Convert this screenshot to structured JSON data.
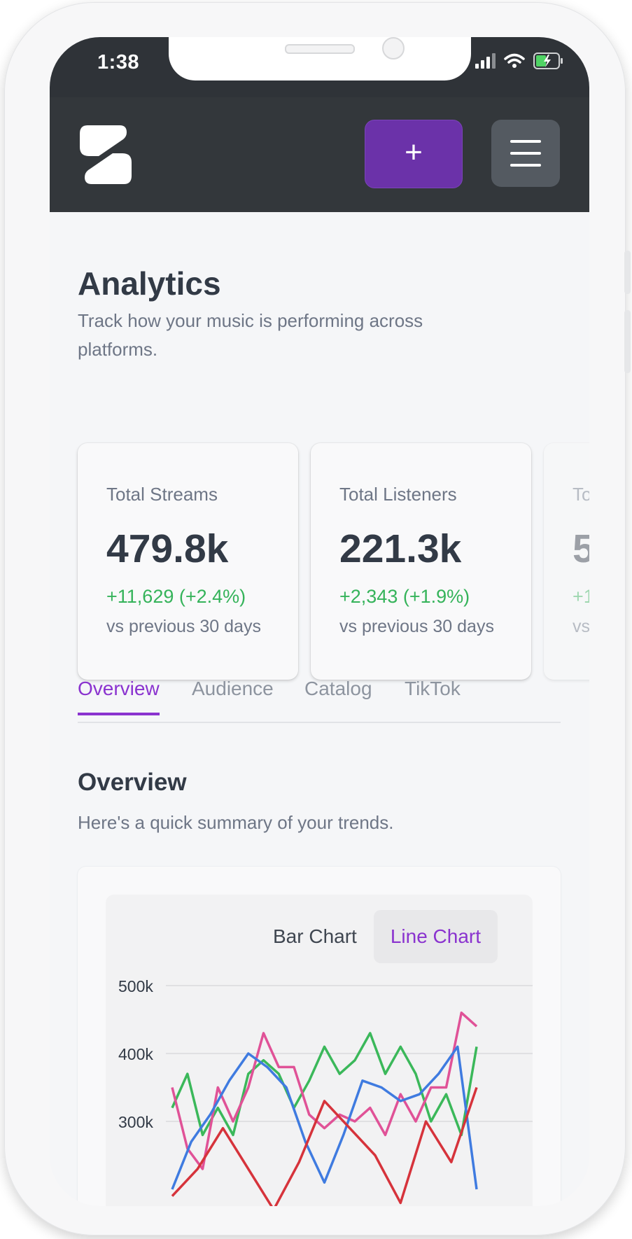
{
  "status_bar": {
    "time": "1:38"
  },
  "header": {
    "add_label": "+"
  },
  "page": {
    "title": "Analytics",
    "subtitle": "Track how your music is performing across platforms."
  },
  "stats": [
    {
      "label": "Total Streams",
      "value": "479.8k",
      "delta": "+11,629 (+2.4%)",
      "period": "vs previous 30 days"
    },
    {
      "label": "Total Listeners",
      "value": "221.3k",
      "delta": "+2,343 (+1.9%)",
      "period": "vs previous 30 days"
    },
    {
      "label": "To",
      "value": "5",
      "delta": "+1",
      "period": "vs"
    }
  ],
  "tabs": [
    "Overview",
    "Audience",
    "Catalog",
    "TikTok"
  ],
  "active_tab": "Overview",
  "overview": {
    "title": "Overview",
    "subtitle": "Here's a quick summary of your trends."
  },
  "chart_toggle": {
    "bar": "Bar Chart",
    "line": "Line Chart",
    "active": "Line Chart"
  },
  "colors": {
    "accent": "#8a33cf",
    "add_button": "#6b32a9",
    "positive": "#35b35a",
    "header": "#33373b"
  },
  "icons": [
    "signal-icon",
    "wifi-icon",
    "battery-charging-icon",
    "menu-icon",
    "plus-icon",
    "logo-icon"
  ],
  "chart_data": {
    "type": "line",
    "yticks": [
      "500k",
      "400k",
      "300k"
    ],
    "ylim": [
      200,
      500
    ],
    "grid": true,
    "series": [
      {
        "color": "#3bb85a",
        "values": [
          320,
          370,
          280,
          320,
          280,
          370,
          390,
          370,
          320,
          360,
          410,
          370,
          390,
          430,
          370,
          410,
          370,
          300,
          340,
          280,
          410
        ]
      },
      {
        "color": "#e05297",
        "values": [
          350,
          260,
          230,
          350,
          300,
          350,
          430,
          380,
          380,
          310,
          290,
          310,
          300,
          320,
          280,
          340,
          300,
          350,
          350,
          460,
          440
        ]
      },
      {
        "color": "#3f7be0",
        "values": [
          200,
          270,
          310,
          360,
          400,
          380,
          350,
          270,
          210,
          280,
          360,
          350,
          330,
          340,
          370,
          410,
          200
        ]
      },
      {
        "color": "#d6333b",
        "values": [
          190,
          230,
          290,
          230,
          170,
          240,
          330,
          290,
          250,
          180,
          300,
          240,
          350
        ]
      }
    ]
  }
}
